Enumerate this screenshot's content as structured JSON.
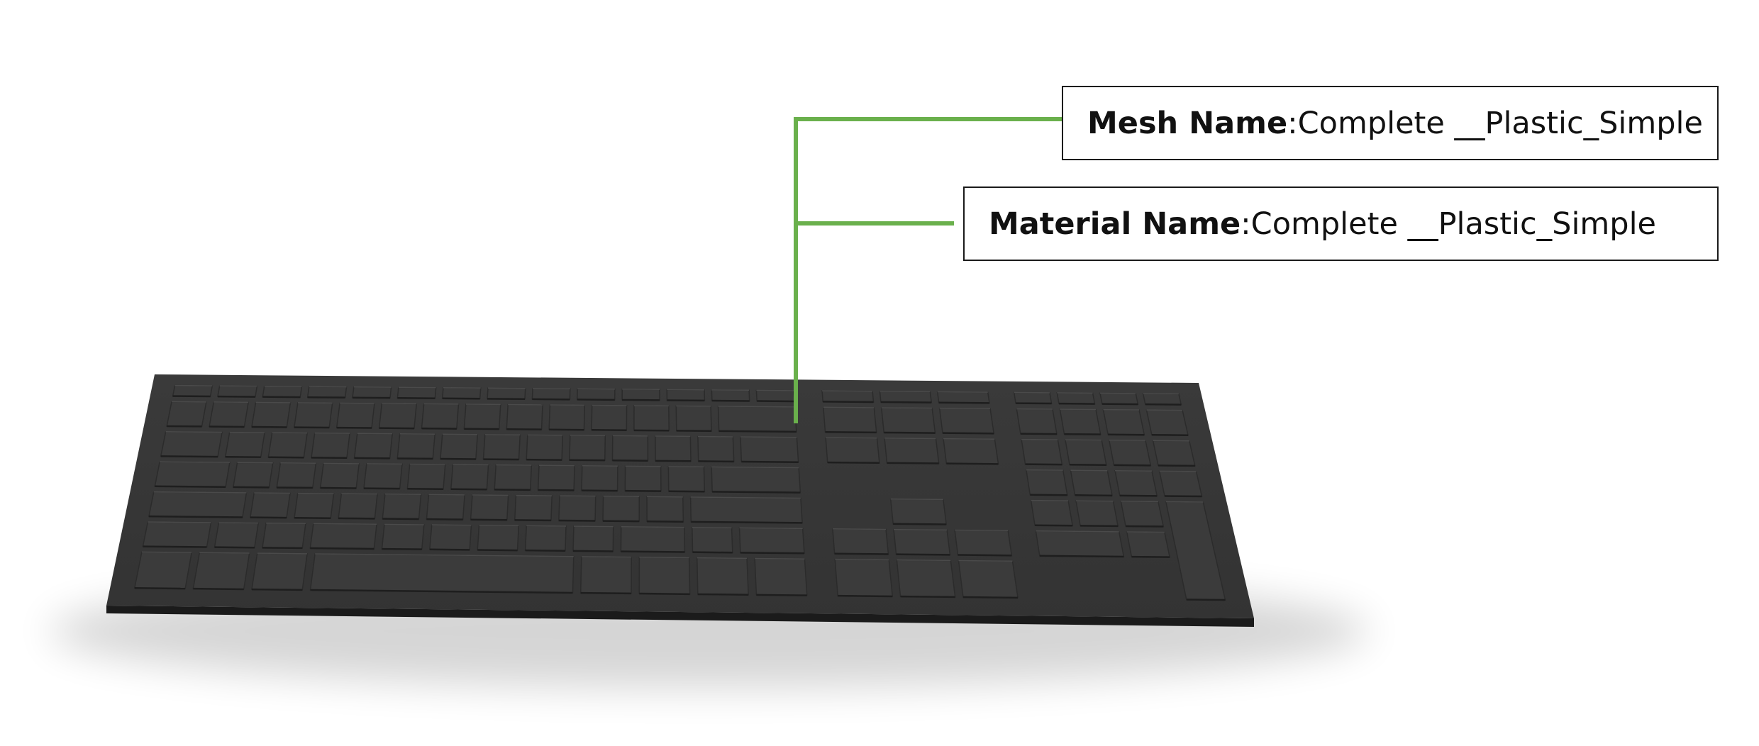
{
  "labels": {
    "mesh": {
      "key": "Mesh Name",
      "sep": ": ",
      "value": "Complete __Plastic_Simple"
    },
    "material": {
      "key": "Material Name",
      "sep": ": ",
      "value": "Complete __Plastic_Simple"
    }
  },
  "colors": {
    "leader": "#6ab04c",
    "keyboard_top": "#383838",
    "keyboard_edge": "#1c1c1c",
    "key_face": "#3b3b3b",
    "label_border": "#1a1a1a"
  },
  "icons": [
    "keyboard-model"
  ]
}
